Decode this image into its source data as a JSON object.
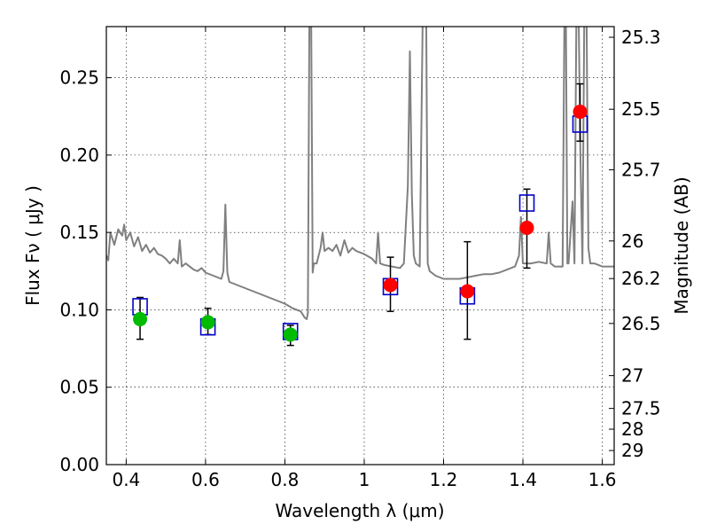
{
  "chart_data": {
    "type": "scatter",
    "xlabel": "Wavelength  λ (μm)",
    "ylabel": "Flux  Fν  ( μJy )",
    "y2label": "Magnitude (AB)",
    "xlim": [
      0.35,
      1.63
    ],
    "ylim": [
      0.0,
      0.283
    ],
    "grid": true,
    "x_ticks": [
      0.4,
      0.6,
      0.8,
      1.0,
      1.2,
      1.4,
      1.6
    ],
    "x_tick_labels": [
      "0.4",
      "0.6",
      "0.8",
      "1",
      "1.2",
      "1.4",
      "1.6"
    ],
    "y_ticks": [
      0.0,
      0.05,
      0.1,
      0.15,
      0.2,
      0.25
    ],
    "y_tick_labels": [
      "0.00",
      "0.05",
      "0.10",
      "0.15",
      "0.20",
      "0.25"
    ],
    "y2_ticks": [
      {
        "flux": 0.2761,
        "label": "25.3"
      },
      {
        "flux": 0.2296,
        "label": "25.5"
      },
      {
        "flux": 0.1905,
        "label": "25.7"
      },
      {
        "flux": 0.1445,
        "label": "26"
      },
      {
        "flux": 0.1202,
        "label": "26.2"
      },
      {
        "flux": 0.0912,
        "label": "26.5"
      },
      {
        "flux": 0.0575,
        "label": "27"
      },
      {
        "flux": 0.0363,
        "label": "27.5"
      },
      {
        "flux": 0.0229,
        "label": "28"
      },
      {
        "flux": 0.0091,
        "label": "29"
      }
    ],
    "series": [
      {
        "marker": "circle",
        "color": "#00bb00",
        "points": [
          {
            "x": 0.435,
            "y": 0.094
          },
          {
            "x": 0.606,
            "y": 0.092
          },
          {
            "x": 0.814,
            "y": 0.084
          }
        ]
      },
      {
        "marker": "circle",
        "color": "#ff0000",
        "points": [
          {
            "x": 1.066,
            "y": 0.116
          },
          {
            "x": 1.26,
            "y": 0.112
          },
          {
            "x": 1.41,
            "y": 0.153
          },
          {
            "x": 1.544,
            "y": 0.228
          }
        ]
      },
      {
        "marker": "open-square",
        "color": "#0000cc",
        "points": [
          {
            "x": 0.435,
            "y": 0.102
          },
          {
            "x": 0.606,
            "y": 0.089
          },
          {
            "x": 0.814,
            "y": 0.086
          },
          {
            "x": 1.066,
            "y": 0.115
          },
          {
            "x": 1.26,
            "y": 0.109
          },
          {
            "x": 1.41,
            "y": 0.169
          },
          {
            "x": 1.544,
            "y": 0.22
          }
        ]
      }
    ],
    "error_bars": [
      {
        "x": 0.435,
        "low": 0.081,
        "high": 0.108
      },
      {
        "x": 0.606,
        "low": 0.084,
        "high": 0.101
      },
      {
        "x": 0.814,
        "low": 0.077,
        "high": 0.09
      },
      {
        "x": 1.066,
        "low": 0.099,
        "high": 0.134
      },
      {
        "x": 1.26,
        "low": 0.081,
        "high": 0.144
      },
      {
        "x": 1.41,
        "low": 0.127,
        "high": 0.178
      },
      {
        "x": 1.544,
        "low": 0.209,
        "high": 0.246
      }
    ],
    "model_spectrum": {
      "color": "#808080",
      "x": [
        0.35,
        0.355,
        0.36,
        0.37,
        0.38,
        0.39,
        0.395,
        0.4,
        0.41,
        0.42,
        0.43,
        0.44,
        0.45,
        0.46,
        0.47,
        0.48,
        0.49,
        0.5,
        0.51,
        0.52,
        0.53,
        0.535,
        0.54,
        0.55,
        0.56,
        0.57,
        0.58,
        0.59,
        0.6,
        0.62,
        0.64,
        0.645,
        0.65,
        0.655,
        0.66,
        0.68,
        0.7,
        0.72,
        0.74,
        0.76,
        0.78,
        0.8,
        0.82,
        0.84,
        0.85,
        0.855,
        0.858,
        0.862,
        0.866,
        0.87,
        0.873,
        0.876,
        0.88,
        0.89,
        0.895,
        0.9,
        0.91,
        0.92,
        0.93,
        0.94,
        0.95,
        0.96,
        0.97,
        0.98,
        1.0,
        1.02,
        1.03,
        1.035,
        1.04,
        1.05,
        1.07,
        1.09,
        1.1,
        1.11,
        1.115,
        1.12,
        1.125,
        1.13,
        1.14,
        1.148,
        1.152,
        1.156,
        1.16,
        1.165,
        1.18,
        1.2,
        1.22,
        1.24,
        1.26,
        1.28,
        1.3,
        1.32,
        1.34,
        1.36,
        1.38,
        1.39,
        1.395,
        1.4,
        1.41,
        1.42,
        1.44,
        1.46,
        1.465,
        1.47,
        1.48,
        1.5,
        1.505,
        1.508,
        1.512,
        1.515,
        1.52,
        1.525,
        1.53,
        1.535,
        1.54,
        1.545,
        1.55,
        1.555,
        1.56,
        1.565,
        1.57,
        1.58,
        1.6,
        1.63
      ],
      "y": [
        0.135,
        0.132,
        0.15,
        0.142,
        0.152,
        0.148,
        0.155,
        0.145,
        0.15,
        0.141,
        0.147,
        0.138,
        0.142,
        0.137,
        0.14,
        0.136,
        0.135,
        0.133,
        0.13,
        0.133,
        0.13,
        0.145,
        0.128,
        0.13,
        0.128,
        0.126,
        0.125,
        0.127,
        0.124,
        0.122,
        0.12,
        0.125,
        0.168,
        0.124,
        0.118,
        0.116,
        0.114,
        0.112,
        0.11,
        0.108,
        0.106,
        0.104,
        0.101,
        0.099,
        0.095,
        0.094,
        0.098,
        0.3,
        0.3,
        0.124,
        0.13,
        0.13,
        0.13,
        0.14,
        0.15,
        0.138,
        0.14,
        0.138,
        0.142,
        0.135,
        0.145,
        0.137,
        0.14,
        0.138,
        0.136,
        0.133,
        0.13,
        0.15,
        0.13,
        0.129,
        0.128,
        0.127,
        0.13,
        0.18,
        0.267,
        0.175,
        0.135,
        0.13,
        0.128,
        0.3,
        0.3,
        0.3,
        0.13,
        0.125,
        0.122,
        0.12,
        0.12,
        0.12,
        0.121,
        0.122,
        0.123,
        0.123,
        0.124,
        0.126,
        0.128,
        0.135,
        0.16,
        0.13,
        0.13,
        0.13,
        0.131,
        0.13,
        0.15,
        0.13,
        0.128,
        0.128,
        0.3,
        0.3,
        0.13,
        0.13,
        0.15,
        0.17,
        0.13,
        0.3,
        0.3,
        0.2,
        0.13,
        0.3,
        0.3,
        0.14,
        0.13,
        0.13,
        0.128,
        0.128
      ]
    }
  }
}
